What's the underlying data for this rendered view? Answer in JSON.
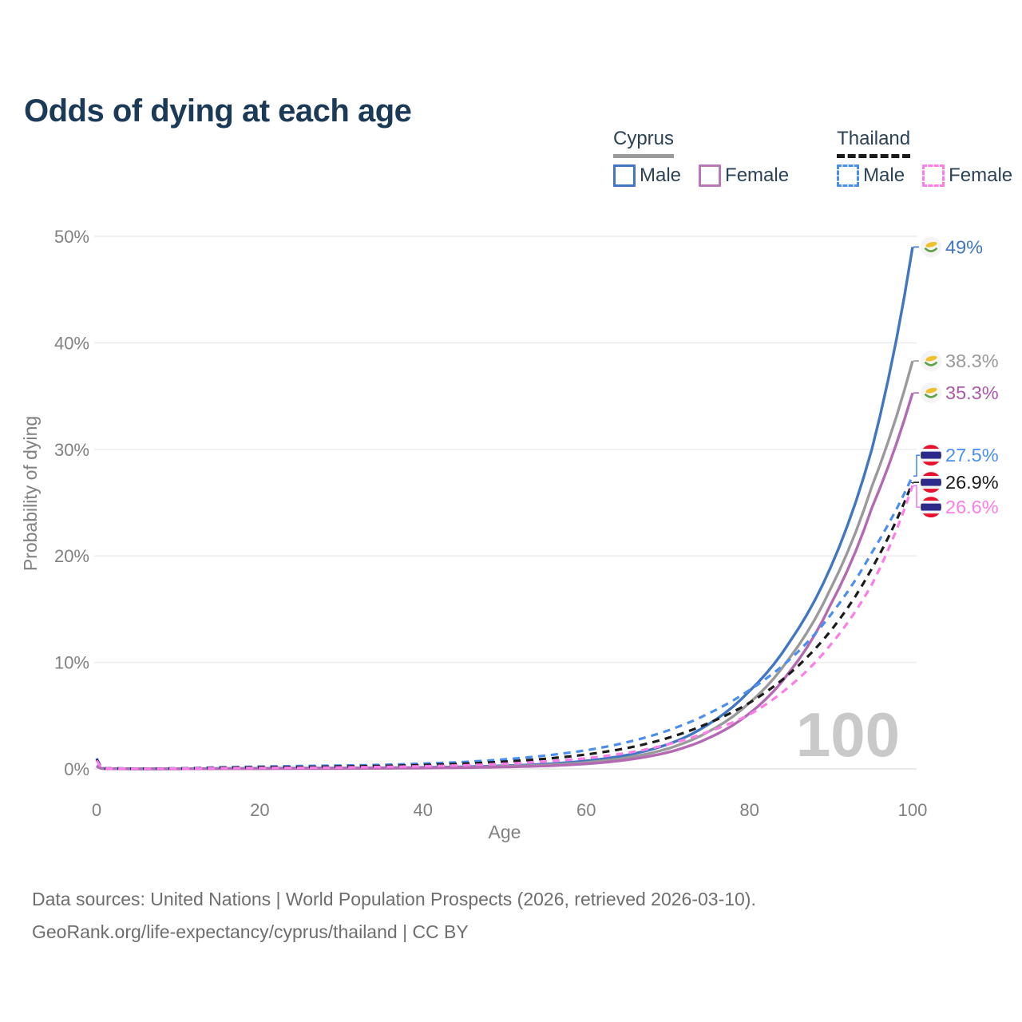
{
  "title": "Odds of dying at each age",
  "legend": {
    "groups": [
      {
        "label": "Cyprus",
        "underline": {
          "style": "solid",
          "color": "#9a9a9a"
        },
        "items": [
          {
            "label": "Male",
            "color": "#4076c2",
            "dash": false
          },
          {
            "label": "Female",
            "color": "#b878b8",
            "dash": false
          }
        ]
      },
      {
        "label": "Thailand",
        "underline": {
          "style": "dashed",
          "color": "#1b1b1b"
        },
        "items": [
          {
            "label": "Male",
            "color": "#4b8ef2",
            "dash": true
          },
          {
            "label": "Female",
            "color": "#fc7de8",
            "dash": true
          }
        ]
      }
    ]
  },
  "chart_data": {
    "type": "line",
    "title": "Odds of dying at each age",
    "xlabel": "Age",
    "ylabel": "Probability of dying",
    "x_ticks": [
      0,
      20,
      40,
      60,
      80,
      100
    ],
    "y_ticks": [
      "0%",
      "10%",
      "20%",
      "30%",
      "40%",
      "50%"
    ],
    "xlim": [
      0,
      100
    ],
    "ylim_percent": [
      0,
      50
    ],
    "grid": "horizontal",
    "watermark": "100",
    "ages": [
      0,
      1,
      5,
      10,
      15,
      20,
      25,
      30,
      35,
      40,
      45,
      50,
      55,
      60,
      65,
      70,
      75,
      80,
      85,
      90,
      95,
      100
    ],
    "series": [
      {
        "name": "Cyprus Male",
        "country": "Cyprus",
        "sex": "Male",
        "color": "#4076c2",
        "dash": false,
        "flag": "cyprus",
        "end_label": "49%",
        "label_color": "#4076c2",
        "label_offset": 0,
        "values_percent": [
          0.3,
          0.02,
          0.01,
          0.012,
          0.04,
          0.06,
          0.07,
          0.08,
          0.1,
          0.14,
          0.2,
          0.3,
          0.45,
          0.75,
          1.3,
          2.3,
          4.2,
          7.3,
          12,
          19,
          30,
          49
        ]
      },
      {
        "name": "Cyprus Both sexes",
        "country": "Cyprus",
        "sex": "Both",
        "color": "#9a9a9a",
        "dash": false,
        "flag": "cyprus",
        "end_label": "38.3%",
        "label_color": "#9a9a9a",
        "label_offset": 0,
        "values_percent": [
          0.27,
          0.018,
          0.009,
          0.011,
          0.03,
          0.04,
          0.05,
          0.06,
          0.08,
          0.11,
          0.16,
          0.24,
          0.36,
          0.6,
          1.05,
          1.9,
          3.5,
          6.2,
          10.5,
          17,
          26.5,
          38.3
        ]
      },
      {
        "name": "Cyprus Female",
        "country": "Cyprus",
        "sex": "Female",
        "color": "#b36ab3",
        "dash": false,
        "flag": "cyprus",
        "end_label": "35.3%",
        "label_color": "#ab57ab",
        "label_offset": 0,
        "values_percent": [
          0.24,
          0.015,
          0.008,
          0.01,
          0.02,
          0.025,
          0.03,
          0.04,
          0.06,
          0.08,
          0.12,
          0.18,
          0.28,
          0.47,
          0.85,
          1.55,
          2.9,
          5.2,
          9.2,
          15.5,
          24.5,
          35.3
        ]
      },
      {
        "name": "Thailand Male",
        "country": "Thailand",
        "sex": "Male",
        "color": "#4b8ef2",
        "dash": true,
        "flag": "thailand",
        "end_label": "27.5%",
        "label_color": "#4b8ef2",
        "label_offset": -26,
        "values_percent": [
          1.0,
          0.06,
          0.03,
          0.05,
          0.15,
          0.22,
          0.27,
          0.32,
          0.38,
          0.5,
          0.65,
          0.9,
          1.25,
          1.75,
          2.5,
          3.6,
          5.2,
          7.4,
          10.3,
          14.5,
          20.3,
          27.5
        ]
      },
      {
        "name": "Thailand Both sexes",
        "country": "Thailand",
        "sex": "Both",
        "color": "#1b1b1b",
        "dash": true,
        "flag": "thailand",
        "end_label": "26.9%",
        "label_color": "#1b1b1b",
        "label_offset": 0,
        "values_percent": [
          0.9,
          0.05,
          0.025,
          0.04,
          0.11,
          0.16,
          0.19,
          0.23,
          0.28,
          0.37,
          0.49,
          0.68,
          0.95,
          1.35,
          1.95,
          2.9,
          4.3,
          6.2,
          9.0,
          13.0,
          18.8,
          26.9
        ]
      },
      {
        "name": "Thailand Female",
        "country": "Thailand",
        "sex": "Female",
        "color": "#fc7de8",
        "dash": true,
        "flag": "thailand",
        "end_label": "26.6%",
        "label_color": "#fc7de8",
        "label_offset": 27,
        "values_percent": [
          0.8,
          0.045,
          0.02,
          0.03,
          0.07,
          0.09,
          0.11,
          0.14,
          0.19,
          0.25,
          0.34,
          0.48,
          0.7,
          1.0,
          1.5,
          2.3,
          3.5,
          5.1,
          7.8,
          11.7,
          17.3,
          26.6
        ]
      }
    ]
  },
  "footer": {
    "line1": "Data sources: United Nations | World Population Prospects (2026, retrieved 2026-03-10).",
    "line2": "GeoRank.org/life-expectancy/cyprus/thailand | CC BY"
  }
}
